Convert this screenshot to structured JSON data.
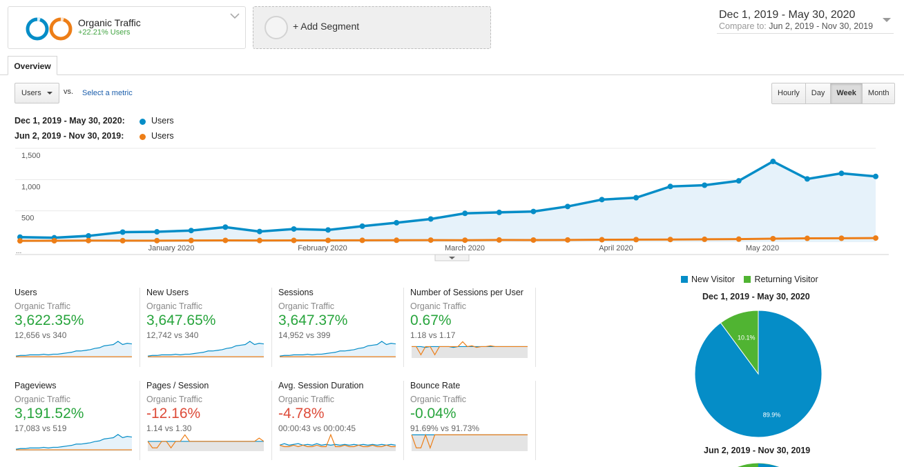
{
  "segment": {
    "name": "Organic Traffic",
    "subtitle": "+22.21% Users",
    "add_label": "+ Add Segment"
  },
  "date_range": {
    "main": "Dec 1, 2019 - May 30, 2020",
    "compare_label": "Compare to:",
    "compare_value": "Jun 2, 2019 - Nov 30, 2019"
  },
  "tabs": [
    "Overview"
  ],
  "toolbar": {
    "metric": "Users",
    "vs": "vs.",
    "select_metric": "Select a metric",
    "granularity": [
      "Hourly",
      "Day",
      "Week",
      "Month"
    ],
    "active_granularity": "Week"
  },
  "legend": [
    {
      "range": "Dec 1, 2019 - May 30, 2020:",
      "metric": "Users",
      "color": "#058dc7"
    },
    {
      "range": "Jun 2, 2019 - Nov 30, 2019:",
      "metric": "Users",
      "color": "#ed7e17"
    }
  ],
  "chart_data": {
    "type": "line",
    "ylim": [
      0,
      1500
    ],
    "y_ticks": [
      "1,500",
      "1,000",
      "500"
    ],
    "y_tick_values": [
      1500,
      1000,
      500
    ],
    "x_labels": [
      "January 2020",
      "February 2020",
      "March 2020",
      "April 2020",
      "May 2020"
    ],
    "x_start_label": "...",
    "series": [
      {
        "name": "Dec 1, 2019 - May 30, 2020",
        "color": "#058dc7",
        "values": [
          80,
          70,
          100,
          160,
          165,
          185,
          240,
          170,
          210,
          195,
          255,
          310,
          370,
          460,
          475,
          490,
          570,
          680,
          710,
          890,
          910,
          980,
          1290,
          1010,
          1100,
          1050
        ]
      },
      {
        "name": "Jun 2, 2019 - Nov 30, 2019",
        "color": "#ed7e17",
        "values": [
          20,
          22,
          25,
          23,
          24,
          26,
          28,
          26,
          27,
          28,
          29,
          30,
          32,
          31,
          34,
          33,
          35,
          38,
          40,
          42,
          45,
          48,
          55,
          60,
          62,
          65
        ]
      }
    ]
  },
  "scorecards": [
    {
      "name": "Users",
      "segment": "Organic Traffic",
      "value": "3,622.35%",
      "sign": "pos",
      "compare": "12,656 vs 340",
      "a": [
        3,
        4,
        4,
        5,
        5,
        5,
        6,
        5,
        6,
        6,
        7,
        8,
        9,
        11,
        11,
        12,
        13,
        15,
        16,
        19,
        20,
        21,
        26,
        21,
        23,
        22
      ],
      "b": [
        2,
        2,
        2,
        2,
        2,
        2,
        2,
        2,
        2,
        2,
        2,
        2,
        2,
        2,
        2,
        2,
        2,
        2,
        2,
        2,
        2,
        2,
        2,
        2,
        2,
        2
      ]
    },
    {
      "name": "New Users",
      "segment": "Organic Traffic",
      "value": "3,647.65%",
      "sign": "pos",
      "compare": "12,742 vs 340",
      "a": [
        3,
        4,
        4,
        5,
        5,
        5,
        6,
        5,
        6,
        6,
        7,
        8,
        9,
        11,
        11,
        12,
        13,
        15,
        16,
        19,
        20,
        21,
        26,
        21,
        23,
        22
      ],
      "b": [
        2,
        2,
        2,
        2,
        2,
        2,
        2,
        2,
        2,
        2,
        2,
        2,
        2,
        2,
        2,
        2,
        2,
        2,
        2,
        2,
        2,
        2,
        2,
        2,
        2,
        2
      ]
    },
    {
      "name": "Sessions",
      "segment": "Organic Traffic",
      "value": "3,647.37%",
      "sign": "pos",
      "compare": "14,952 vs 399",
      "a": [
        3,
        4,
        4,
        5,
        5,
        5,
        6,
        5,
        6,
        6,
        7,
        8,
        9,
        11,
        11,
        12,
        13,
        15,
        16,
        19,
        20,
        21,
        26,
        21,
        23,
        22
      ],
      "b": [
        2,
        2,
        2,
        2,
        2,
        2,
        2,
        2,
        2,
        2,
        2,
        2,
        2,
        2,
        2,
        2,
        2,
        2,
        2,
        2,
        2,
        2,
        2,
        2,
        2,
        2
      ]
    },
    {
      "name": "Number of Sessions per User",
      "segment": "Organic Traffic",
      "value": "0.67%",
      "sign": "pos",
      "compare": "1.18 vs 1.17",
      "a": [
        14,
        14,
        14,
        13,
        14,
        14,
        14,
        14,
        14,
        13,
        14,
        14,
        14,
        14,
        14,
        14,
        14,
        14,
        14,
        14,
        14,
        14,
        14,
        14,
        14,
        14
      ],
      "b": [
        14,
        14,
        4,
        14,
        14,
        4,
        14,
        14,
        14,
        14,
        14,
        20,
        14,
        15,
        13,
        14,
        14,
        15,
        14,
        14,
        14,
        14,
        14,
        14,
        14,
        14
      ],
      "gray": true
    },
    {
      "name": "Pageviews",
      "segment": "Organic Traffic",
      "value": "3,191.52%",
      "sign": "pos",
      "compare": "17,083 vs 519",
      "a": [
        3,
        4,
        4,
        5,
        5,
        5,
        6,
        5,
        6,
        6,
        7,
        8,
        9,
        11,
        11,
        12,
        13,
        15,
        16,
        19,
        20,
        21,
        26,
        21,
        23,
        22
      ],
      "b": [
        2,
        2,
        2,
        2,
        2,
        2,
        2,
        2,
        2,
        2,
        2,
        2,
        2,
        2,
        2,
        2,
        2,
        2,
        2,
        2,
        2,
        2,
        2,
        2,
        2,
        2
      ]
    },
    {
      "name": "Pages / Session",
      "segment": "Organic Traffic",
      "value": "-12.16%",
      "sign": "neg",
      "compare": "1.14 vs 1.30",
      "a": [
        12,
        12,
        12,
        12,
        12,
        12,
        12,
        12,
        12,
        12,
        12,
        12,
        12,
        12,
        12,
        12,
        12,
        12,
        12,
        12,
        12,
        12,
        12,
        12,
        12,
        12
      ],
      "b": [
        12,
        4,
        4,
        12,
        12,
        4,
        12,
        12,
        20,
        12,
        12,
        12,
        12,
        12,
        12,
        12,
        12,
        12,
        12,
        12,
        12,
        12,
        12,
        12,
        16,
        12
      ],
      "gray": true
    },
    {
      "name": "Avg. Session Duration",
      "segment": "Organic Traffic",
      "value": "-4.78%",
      "sign": "neg",
      "compare": "00:00:43 vs 00:00:45",
      "a": [
        8,
        10,
        8,
        9,
        10,
        8,
        9,
        8,
        10,
        8,
        9,
        8,
        9,
        8,
        9,
        8,
        9,
        8,
        9,
        8,
        9,
        8,
        9,
        8,
        9,
        8
      ],
      "b": [
        8,
        6,
        6,
        8,
        6,
        8,
        6,
        6,
        8,
        6,
        6,
        22,
        6,
        6,
        8,
        6,
        6,
        8,
        6,
        6,
        8,
        6,
        6,
        8,
        6,
        6
      ],
      "gray": true
    },
    {
      "name": "Bounce Rate",
      "segment": "Organic Traffic",
      "value": "-0.04%",
      "sign": "pos",
      "compare": "91.69% vs 91.73%",
      "a": [
        20,
        20,
        20,
        20,
        20,
        20,
        20,
        20,
        20,
        20,
        20,
        20,
        20,
        20,
        20,
        20,
        20,
        20,
        20,
        20,
        20,
        20,
        20,
        20,
        20,
        20
      ],
      "b": [
        20,
        4,
        4,
        20,
        4,
        20,
        20,
        20,
        20,
        20,
        20,
        20,
        20,
        20,
        20,
        20,
        20,
        20,
        20,
        20,
        20,
        20,
        20,
        20,
        20,
        20
      ],
      "gray": true
    }
  ],
  "pie": {
    "legend": [
      {
        "label": "New Visitor",
        "color": "#058dc7"
      },
      {
        "label": "Returning Visitor",
        "color": "#50b432"
      }
    ],
    "title_1": "Dec 1, 2019 - May 30, 2020",
    "slices": [
      {
        "label": "89.9%",
        "value": 89.9,
        "color": "#058dc7"
      },
      {
        "label": "10.1%",
        "value": 10.1,
        "color": "#50b432"
      }
    ],
    "title_2": "Jun 2, 2019 - Nov 30, 2019"
  }
}
